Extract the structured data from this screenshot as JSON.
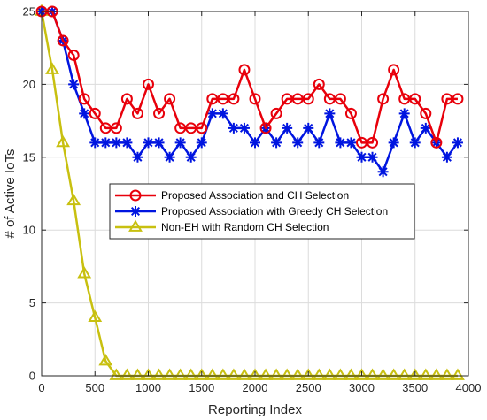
{
  "chart_data": {
    "type": "line",
    "title": "",
    "xlabel": "Reporting Index",
    "ylabel": "# of Active IoTs",
    "xlim": [
      0,
      4000
    ],
    "ylim": [
      0,
      25
    ],
    "xticks": [
      0,
      500,
      1000,
      1500,
      2000,
      2500,
      3000,
      3500,
      4000
    ],
    "yticks": [
      0,
      5,
      10,
      15,
      20,
      25
    ],
    "grid": true,
    "legend_position": "center-right",
    "x": [
      0,
      100,
      200,
      300,
      400,
      500,
      600,
      700,
      800,
      900,
      1000,
      1100,
      1200,
      1300,
      1400,
      1500,
      1600,
      1700,
      1800,
      1900,
      2000,
      2100,
      2200,
      2300,
      2400,
      2500,
      2600,
      2700,
      2800,
      2900,
      3000,
      3100,
      3200,
      3300,
      3400,
      3500,
      3600,
      3700,
      3800,
      3900
    ],
    "series": [
      {
        "name": "Proposed Association and CH Selection",
        "color": "#e8000b",
        "marker": "circle",
        "values": [
          25,
          25,
          23,
          22,
          19,
          18,
          17,
          17,
          19,
          18,
          20,
          18,
          19,
          17,
          17,
          17,
          19,
          19,
          19,
          21,
          19,
          17,
          18,
          19,
          19,
          19,
          20,
          19,
          19,
          18,
          16,
          16,
          19,
          21,
          19,
          19,
          18,
          16,
          19,
          19
        ]
      },
      {
        "name": "Proposed Association with Greedy CH Selection",
        "color": "#0015e0",
        "marker": "asterisk",
        "values": [
          25,
          25,
          23,
          20,
          18,
          16,
          16,
          16,
          16,
          15,
          16,
          16,
          15,
          16,
          15,
          16,
          18,
          18,
          17,
          17,
          16,
          17,
          16,
          17,
          16,
          17,
          16,
          18,
          16,
          16,
          15,
          15,
          14,
          16,
          18,
          16,
          17,
          16,
          15,
          16
        ]
      },
      {
        "name": "Non-EH with Random CH Selection",
        "color": "#c8c010",
        "marker": "triangle",
        "values": [
          25,
          21,
          16,
          12,
          7,
          4,
          1,
          0,
          0,
          0,
          0,
          0,
          0,
          0,
          0,
          0,
          0,
          0,
          0,
          0,
          0,
          0,
          0,
          0,
          0,
          0,
          0,
          0,
          0,
          0,
          0,
          0,
          0,
          0,
          0,
          0,
          0,
          0,
          0,
          0
        ]
      }
    ]
  }
}
